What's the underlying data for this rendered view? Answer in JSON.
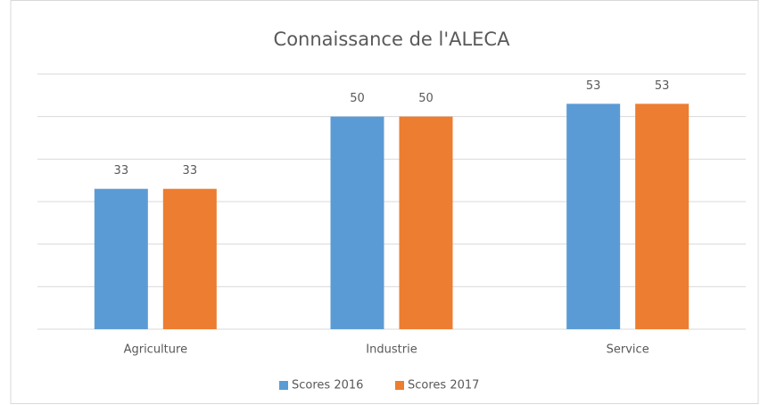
{
  "chart_data": {
    "type": "bar",
    "title": "Connaissance de l'ALECA",
    "categories": [
      "Agriculture",
      "Industrie",
      "Service"
    ],
    "series": [
      {
        "name": "Scores 2016",
        "color": "#5b9bd5",
        "values": [
          33,
          50,
          53
        ]
      },
      {
        "name": "Scores 2017",
        "color": "#ed7d31",
        "values": [
          33,
          50,
          53
        ]
      }
    ],
    "ylim": [
      0,
      60
    ],
    "yticks": [
      0,
      10,
      20,
      30,
      40,
      50,
      60
    ],
    "grid": true,
    "legend": "bottom"
  }
}
